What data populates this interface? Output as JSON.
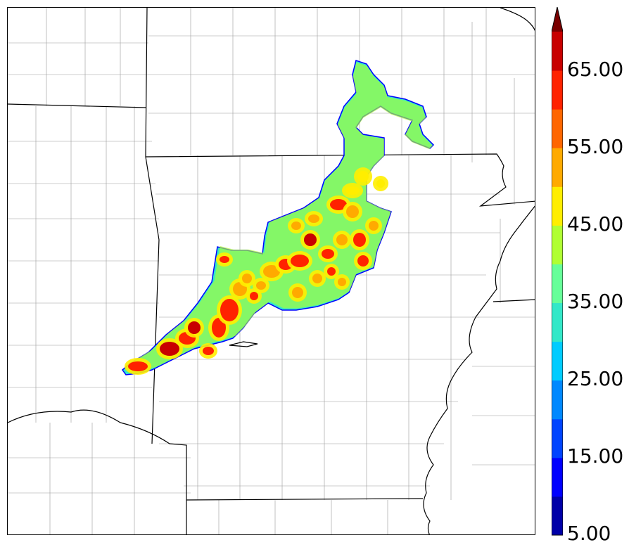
{
  "colorbar": {
    "tick_labels": [
      "5.00",
      "15.00",
      "25.00",
      "35.00",
      "45.00",
      "55.00",
      "65.00"
    ],
    "levels": [
      5,
      10,
      15,
      20,
      25,
      30,
      35,
      40,
      45,
      50,
      55,
      60,
      65,
      70
    ],
    "colors": [
      "#0000a8",
      "#0000ff",
      "#0044ff",
      "#0088ff",
      "#00ccff",
      "#33e8c8",
      "#66ff99",
      "#b0ff33",
      "#ffee00",
      "#ffaa00",
      "#ff6600",
      "#ff2200",
      "#c80000",
      "#7a0000"
    ],
    "extend": "max"
  },
  "map": {
    "field_colors": {
      "outline": "#0000ff",
      "low": "#33e8c8",
      "mid": "#b0ff33",
      "high": "#ffee00",
      "orange": "#ffaa00",
      "red": "#ff2200",
      "darkred": "#c80000"
    }
  }
}
